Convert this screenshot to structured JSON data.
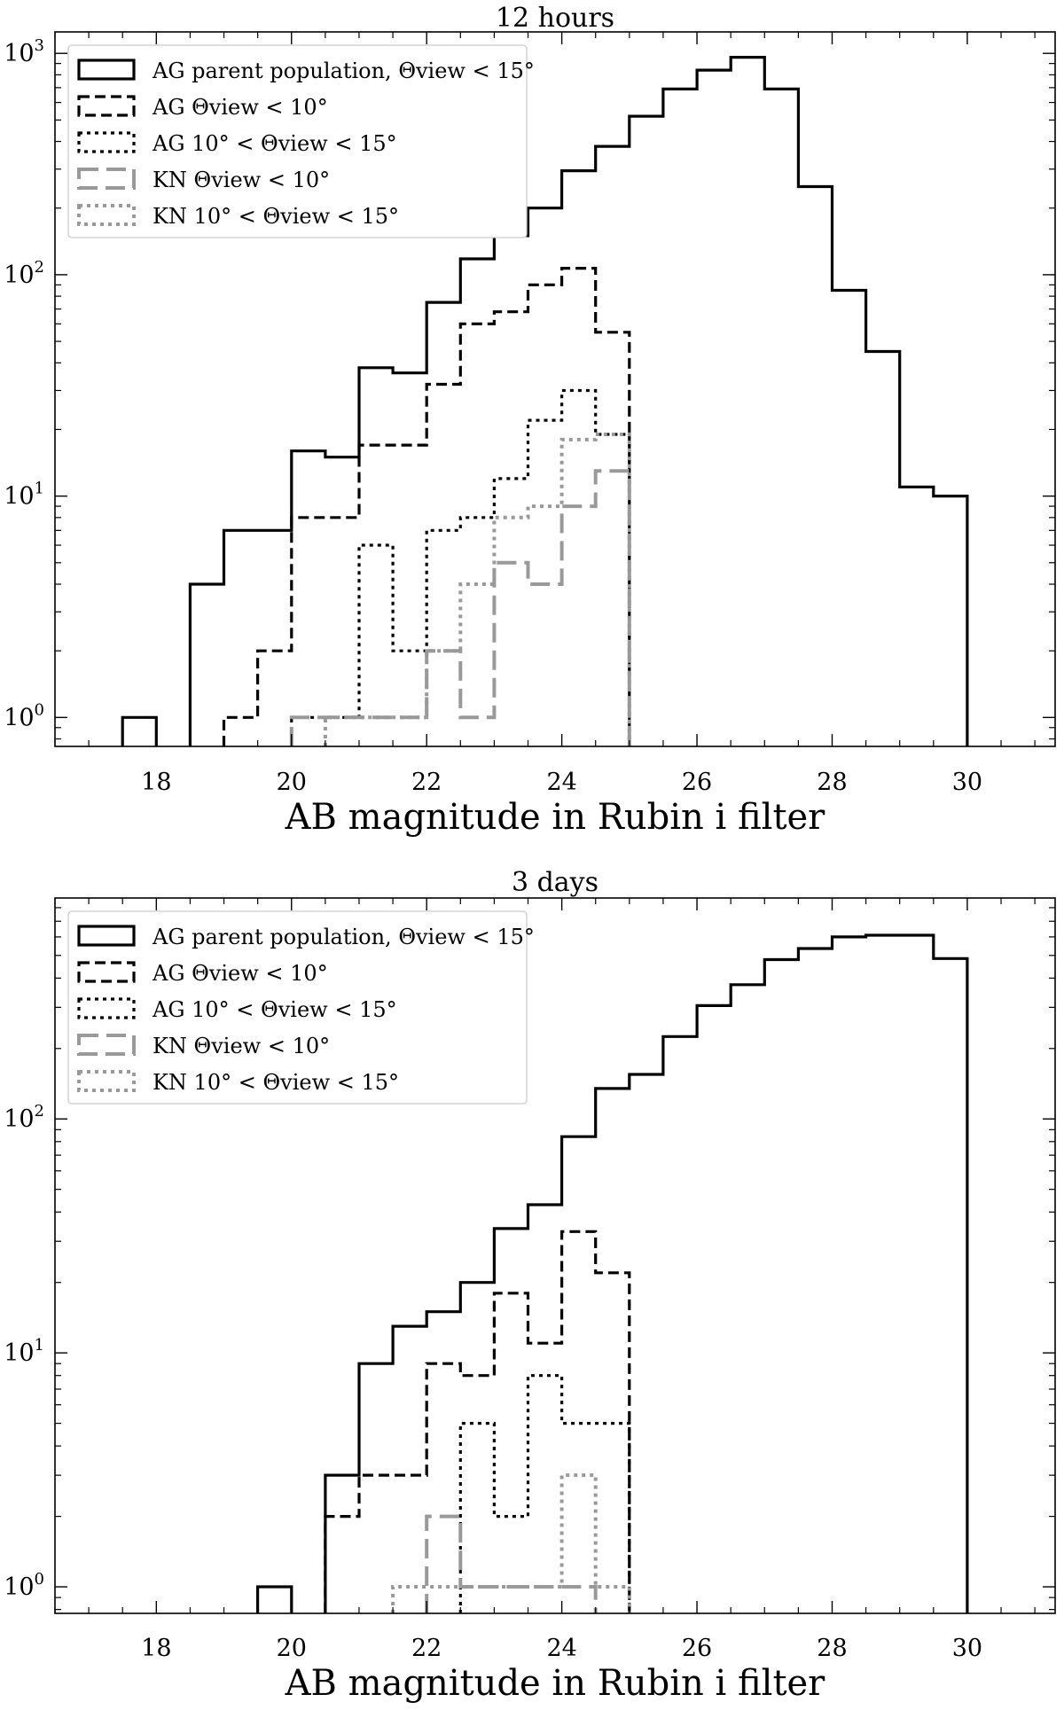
{
  "chart_data": [
    {
      "type": "histogram",
      "title": "12 hours",
      "xlabel": "AB magnitude in Rubin i filter",
      "ylabel": "",
      "xlim": [
        16.5,
        31.3
      ],
      "ylim": [
        0.74,
        1250
      ],
      "yscale": "log",
      "xticks": [
        "18",
        "20",
        "22",
        "24",
        "26",
        "28",
        "30"
      ],
      "yticks": [
        "10^0",
        "10^1",
        "10^2",
        "10^3"
      ],
      "legend_position": "upper left",
      "series": [
        {
          "name": "AG parent population, Θview < 15°",
          "style": "solid",
          "color": "#000000",
          "steps": [
            [
              17.5,
              18.0,
              1
            ],
            [
              18.5,
              19.0,
              4
            ],
            [
              19.0,
              20.0,
              7
            ],
            [
              20.0,
              20.5,
              16
            ],
            [
              20.5,
              21.0,
              15
            ],
            [
              21.0,
              21.5,
              38
            ],
            [
              21.5,
              22.0,
              36
            ],
            [
              22.0,
              22.5,
              75
            ],
            [
              22.5,
              23.0,
              118
            ],
            [
              23.0,
              23.5,
              150
            ],
            [
              23.5,
              24.0,
              200
            ],
            [
              24.0,
              24.5,
              295
            ],
            [
              24.5,
              25.0,
              380
            ],
            [
              25.0,
              25.5,
              520
            ],
            [
              25.5,
              26.0,
              690
            ],
            [
              26.0,
              26.5,
              840
            ],
            [
              26.5,
              27.0,
              960
            ],
            [
              27.0,
              27.5,
              690
            ],
            [
              27.5,
              28.0,
              250
            ],
            [
              28.0,
              28.5,
              85
            ],
            [
              28.5,
              29.0,
              45
            ],
            [
              29.0,
              29.5,
              11
            ],
            [
              29.5,
              30.0,
              10
            ]
          ]
        },
        {
          "name": "AG Θview < 10°",
          "style": "dashed",
          "color": "#000000",
          "steps": [
            [
              19.0,
              19.5,
              1
            ],
            [
              19.5,
              20.0,
              2
            ],
            [
              20.0,
              21.0,
              8
            ],
            [
              21.0,
              22.0,
              17
            ],
            [
              22.0,
              22.5,
              32
            ],
            [
              22.5,
              23.0,
              60
            ],
            [
              23.0,
              23.5,
              68
            ],
            [
              23.5,
              24.0,
              90
            ],
            [
              24.0,
              24.5,
              107
            ],
            [
              24.5,
              25.0,
              55
            ]
          ]
        },
        {
          "name": "AG 10° < Θview < 15°",
          "style": "dotted",
          "color": "#000000",
          "steps": [
            [
              20.0,
              21.0,
              1
            ],
            [
              21.0,
              21.5,
              6
            ],
            [
              21.5,
              22.0,
              2
            ],
            [
              22.0,
              22.5,
              7
            ],
            [
              22.5,
              23.0,
              8
            ],
            [
              23.0,
              23.5,
              12
            ],
            [
              23.5,
              24.0,
              22
            ],
            [
              24.0,
              24.5,
              30
            ],
            [
              24.5,
              25.0,
              19
            ]
          ]
        },
        {
          "name": "KN Θview < 10°",
          "style": "dashed",
          "color": "#999999",
          "steps": [
            [
              20.0,
              22.0,
              1
            ],
            [
              22.0,
              22.5,
              2
            ],
            [
              22.5,
              23.0,
              1
            ],
            [
              23.0,
              23.5,
              5
            ],
            [
              23.5,
              24.0,
              4
            ],
            [
              24.0,
              24.5,
              9
            ],
            [
              24.5,
              25.0,
              13
            ]
          ]
        },
        {
          "name": "KN 10° < Θview < 15°",
          "style": "dotted",
          "color": "#999999",
          "steps": [
            [
              20.5,
              22.0,
              1
            ],
            [
              22.0,
              22.5,
              2
            ],
            [
              22.5,
              23.0,
              4
            ],
            [
              23.0,
              23.5,
              8
            ],
            [
              23.5,
              24.0,
              9
            ],
            [
              24.0,
              24.5,
              18
            ],
            [
              24.5,
              25.0,
              19
            ]
          ]
        }
      ]
    },
    {
      "type": "histogram",
      "title": "3 days",
      "xlabel": "AB magnitude in Rubin i filter",
      "ylabel": "",
      "xlim": [
        16.5,
        31.3
      ],
      "ylim": [
        0.77,
        880
      ],
      "yscale": "log",
      "xticks": [
        "18",
        "20",
        "22",
        "24",
        "26",
        "28",
        "30"
      ],
      "yticks": [
        "10^0",
        "10^1",
        "10^2"
      ],
      "legend_position": "upper left",
      "series": [
        {
          "name": "AG parent population, Θview < 15°",
          "style": "solid",
          "color": "#000000",
          "steps": [
            [
              19.5,
              20.0,
              1
            ],
            [
              20.5,
              21.0,
              3
            ],
            [
              21.0,
              21.5,
              9
            ],
            [
              21.5,
              22.0,
              13
            ],
            [
              22.0,
              22.5,
              15
            ],
            [
              22.5,
              23.0,
              20
            ],
            [
              23.0,
              23.5,
              34
            ],
            [
              23.5,
              24.0,
              43
            ],
            [
              24.0,
              24.5,
              84
            ],
            [
              24.5,
              25.0,
              135
            ],
            [
              25.0,
              25.5,
              155
            ],
            [
              25.5,
              26.0,
              225
            ],
            [
              26.0,
              26.5,
              305
            ],
            [
              26.5,
              27.0,
              375
            ],
            [
              27.0,
              27.5,
              480
            ],
            [
              27.5,
              28.0,
              535
            ],
            [
              28.0,
              28.5,
              600
            ],
            [
              28.5,
              29.5,
              610
            ],
            [
              29.5,
              30.0,
              485
            ]
          ]
        },
        {
          "name": "AG Θview < 10°",
          "style": "dashed",
          "color": "#000000",
          "steps": [
            [
              20.5,
              21.0,
              2
            ],
            [
              21.0,
              22.0,
              3
            ],
            [
              22.0,
              22.5,
              9
            ],
            [
              22.5,
              23.0,
              8
            ],
            [
              23.0,
              23.5,
              18
            ],
            [
              23.5,
              24.0,
              11
            ],
            [
              24.0,
              24.5,
              33
            ],
            [
              24.5,
              25.0,
              22
            ]
          ]
        },
        {
          "name": "AG 10° < Θview < 15°",
          "style": "dotted",
          "color": "#000000",
          "steps": [
            [
              22.5,
              23.0,
              5
            ],
            [
              23.0,
              23.5,
              2
            ],
            [
              23.5,
              24.0,
              8
            ],
            [
              24.0,
              25.0,
              5
            ]
          ]
        },
        {
          "name": "KN Θview < 10°",
          "style": "dashed",
          "color": "#999999",
          "steps": [
            [
              22.0,
              22.5,
              2
            ],
            [
              22.5,
              24.0,
              1
            ],
            [
              24.0,
              24.5,
              1
            ]
          ]
        },
        {
          "name": "KN 10° < Θview < 15°",
          "style": "dotted",
          "color": "#999999",
          "steps": [
            [
              21.5,
              24.0,
              1
            ],
            [
              24.0,
              24.5,
              3
            ],
            [
              24.5,
              25.0,
              1
            ]
          ]
        }
      ]
    }
  ]
}
